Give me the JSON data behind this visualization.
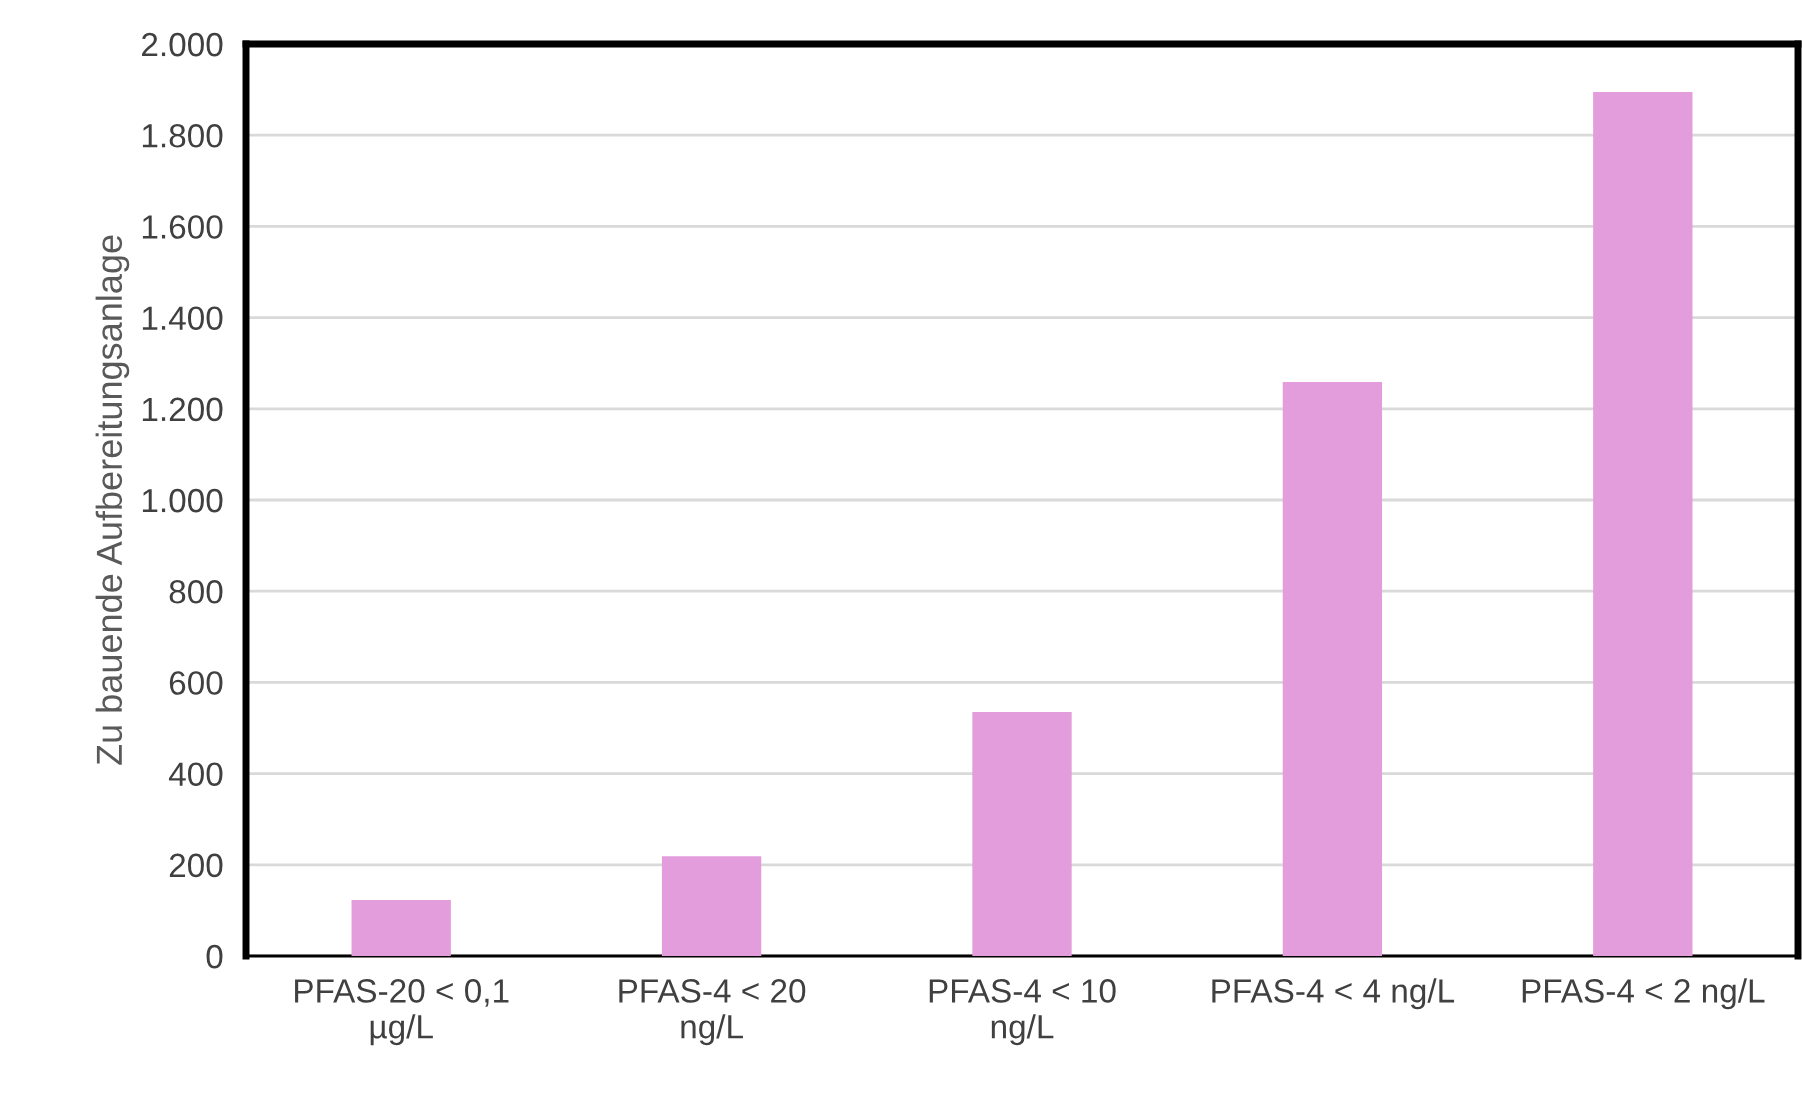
{
  "chart_data": {
    "type": "bar",
    "ylabel": "Zu bauende Aufbereitungsanlage",
    "categories": [
      "PFAS-20 < 0,1\nµg/L",
      "PFAS-4 < 20\nng/L",
      "PFAS-4 < 10\nng/L",
      "PFAS-4 < 4 ng/L",
      "PFAS-4 < 2 ng/L"
    ],
    "values": [
      123,
      219,
      535,
      1259,
      1895
    ],
    "color": "#e39cdc",
    "ylim": [
      0,
      2000
    ],
    "yticks": [
      0,
      200,
      400,
      600,
      800,
      {
        "value": 1000,
        "label": "1.000"
      },
      {
        "value": 1200,
        "label": "1.200"
      },
      {
        "value": 1400,
        "label": "1.400"
      },
      {
        "value": 1600,
        "label": "1.600"
      },
      {
        "value": 1800,
        "label": "1.800"
      },
      {
        "value": 2000,
        "label": "2.000"
      }
    ],
    "grid": "y",
    "legend": false
  }
}
